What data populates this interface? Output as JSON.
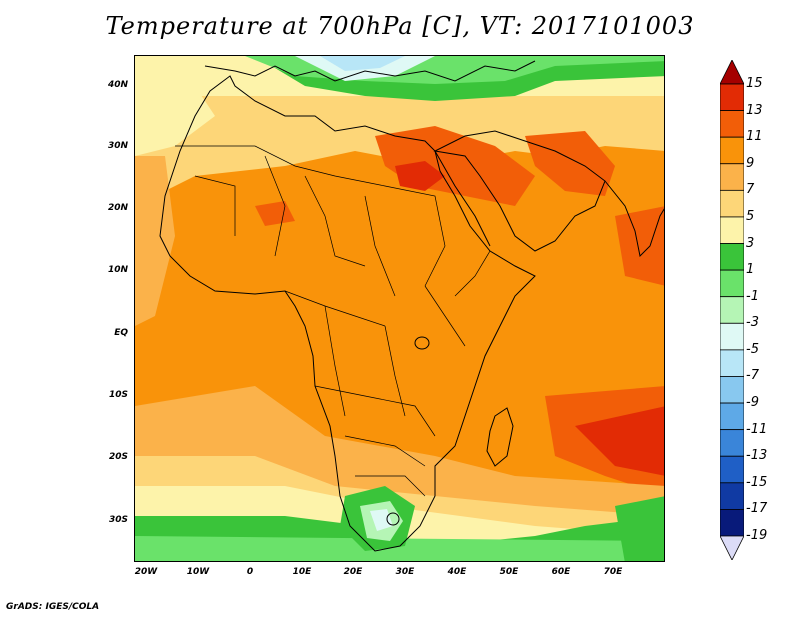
{
  "title": "Temperature at 700hPa [C], VT: 2017101003",
  "credit": "GrADS: IGES/COLA",
  "y_ticks": [
    "40N",
    "30N",
    "20N",
    "10N",
    "EQ",
    "10S",
    "20S",
    "30S"
  ],
  "x_ticks": [
    "20W",
    "10W",
    "0",
    "10E",
    "20E",
    "30E",
    "40E",
    "50E",
    "60E",
    "70E"
  ],
  "colorbar": {
    "labels": [
      "15",
      "13",
      "11",
      "9",
      "7",
      "5",
      "3",
      "1",
      "-1",
      "-3",
      "-5",
      "-7",
      "-9",
      "-11",
      "-13",
      "-15",
      "-17",
      "-19"
    ],
    "colors": [
      "#a50000",
      "#e22b05",
      "#f25e08",
      "#f9930a",
      "#fbb24a",
      "#fdd678",
      "#fdf3aa",
      "#3ac43a",
      "#6ae26a",
      "#b5f5b5",
      "#dff9f5",
      "#b8e6f7",
      "#88c8ef",
      "#5ea9e7",
      "#3a85d9",
      "#1f5fc6",
      "#103aa3",
      "#081a7a",
      "#dcdcf7"
    ]
  },
  "map": {
    "palette": {
      "green": "#3ac43a",
      "lightgreen": "#6ae26a",
      "palegreen": "#b5f5b5",
      "cyan": "#dff9f5",
      "lightblue": "#b8e6f7",
      "paleyellow": "#fdf3aa",
      "yellow": "#fdd678",
      "lightorange": "#fbb24a",
      "orange": "#f9930a",
      "darkorange": "#f25e08",
      "red": "#e22b05"
    }
  }
}
